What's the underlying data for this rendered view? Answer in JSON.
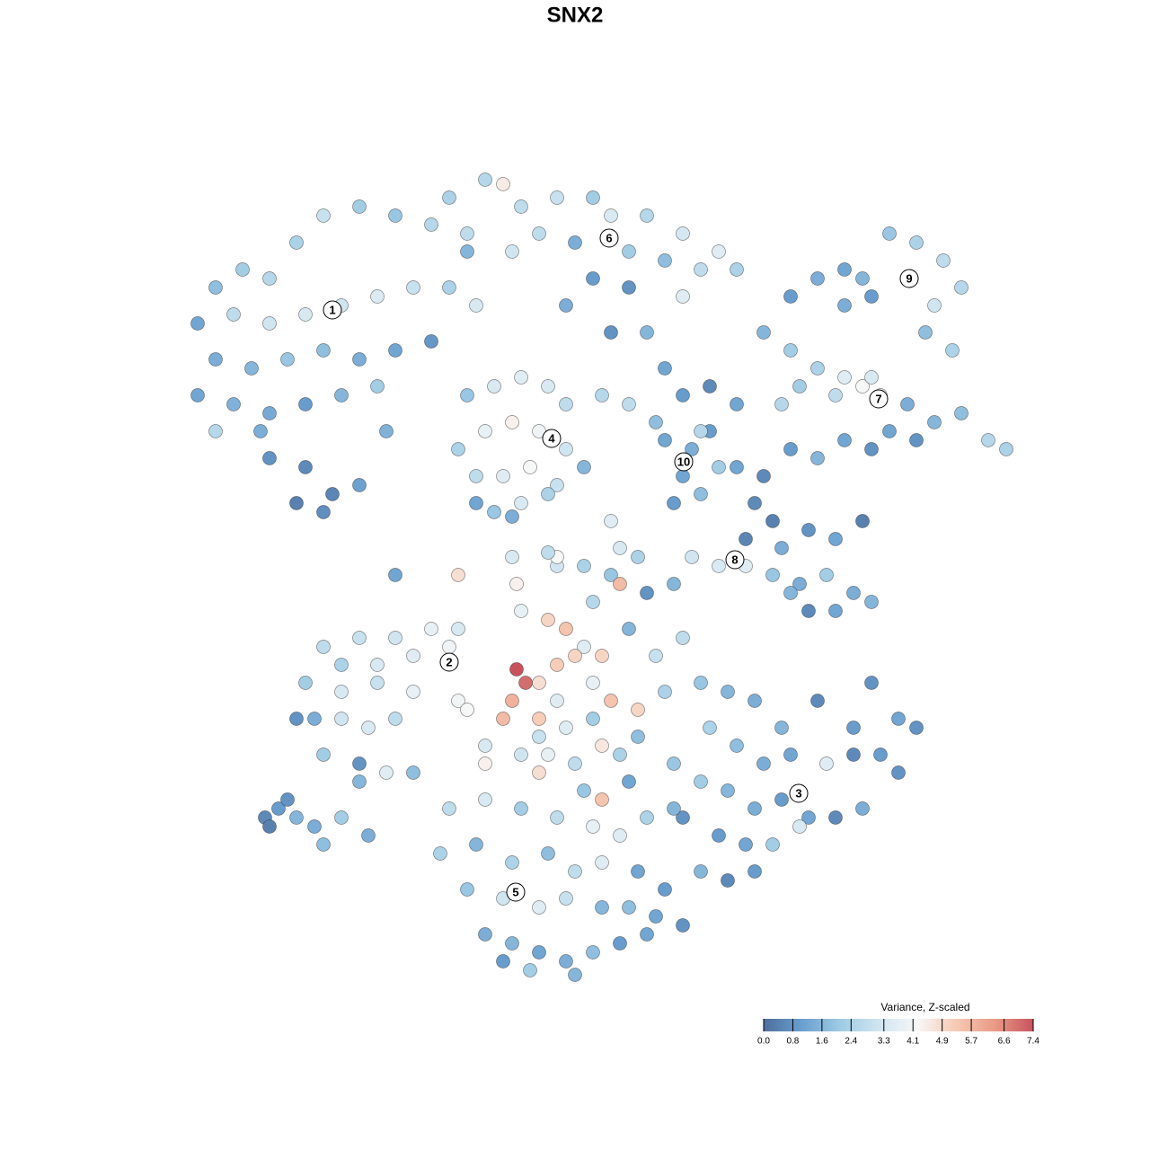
{
  "chart_data": {
    "type": "scatter",
    "title": "SNX2",
    "legend_title": "Variance, Z-scaled",
    "xlim": [
      0,
      128
    ],
    "ylim": [
      0,
      128
    ],
    "zlim": [
      0,
      7.4
    ],
    "colors": [
      "#4d6e9c",
      "#6a9fcf",
      "#9fcbe4",
      "#d0e5f1",
      "#f7f7f7",
      "#f6c9b3",
      "#e99a86",
      "#c8525e"
    ],
    "colorbar_ticks": [
      {
        "value": 0,
        "label": "0.0"
      },
      0.8,
      1.6,
      2.4,
      3.3,
      4.1,
      4.9,
      5.7,
      6.6,
      7.4
    ],
    "points": [
      [
        24,
        96,
        1.8
      ],
      [
        22,
        92,
        1.2
      ],
      [
        27,
        98,
        2.2
      ],
      [
        30,
        97,
        2.6
      ],
      [
        33,
        101,
        2.4
      ],
      [
        36,
        104,
        3.0
      ],
      [
        40,
        105,
        2.2
      ],
      [
        44,
        104,
        2.0
      ],
      [
        48,
        103,
        2.6
      ],
      [
        52,
        102,
        2.8
      ],
      [
        26,
        93,
        2.8
      ],
      [
        30,
        92,
        3.2
      ],
      [
        34,
        93,
        3.4
      ],
      [
        38,
        94,
        3.2
      ],
      [
        42,
        95,
        3.5
      ],
      [
        46,
        96,
        3.0
      ],
      [
        50,
        96,
        2.4
      ],
      [
        53,
        94,
        3.4
      ],
      [
        24,
        88,
        1.4
      ],
      [
        28,
        87,
        1.6
      ],
      [
        32,
        88,
        2.0
      ],
      [
        36,
        89,
        1.8
      ],
      [
        40,
        88,
        1.4
      ],
      [
        44,
        89,
        1.2
      ],
      [
        48,
        90,
        0.9
      ],
      [
        22,
        84,
        1.2
      ],
      [
        26,
        83,
        1.5
      ],
      [
        30,
        82,
        1.3
      ],
      [
        34,
        83,
        1.0
      ],
      [
        38,
        84,
        1.6
      ],
      [
        42,
        85,
        2.2
      ],
      [
        30,
        77,
        0.8
      ],
      [
        34,
        76,
        0.6
      ],
      [
        37,
        73,
        0.5
      ],
      [
        33,
        72,
        0.4
      ],
      [
        36,
        71,
        0.7
      ],
      [
        40,
        74,
        1.1
      ],
      [
        29,
        80,
        1.4
      ],
      [
        24,
        80,
        2.6
      ],
      [
        43,
        80,
        1.5
      ],
      [
        50,
        106,
        2.4
      ],
      [
        54,
        108,
        2.6
      ],
      [
        56,
        107.5,
        4.5
      ],
      [
        58,
        105,
        2.8
      ],
      [
        62,
        106,
        3.0
      ],
      [
        66,
        106,
        2.2
      ],
      [
        68,
        104,
        3.4
      ],
      [
        72,
        104,
        2.6
      ],
      [
        76,
        102,
        3.3
      ],
      [
        80,
        100,
        3.6
      ],
      [
        82,
        98,
        2.4
      ],
      [
        60,
        102,
        2.8
      ],
      [
        64,
        101,
        1.4
      ],
      [
        70,
        100,
        2.2
      ],
      [
        74,
        99,
        1.8
      ],
      [
        78,
        98,
        2.8
      ],
      [
        57,
        100,
        3.2
      ],
      [
        52,
        100,
        1.6
      ],
      [
        66,
        97,
        1.0
      ],
      [
        70,
        96,
        0.8
      ],
      [
        76,
        95,
        3.6
      ],
      [
        63,
        94,
        1.4
      ],
      [
        68,
        91,
        0.8
      ],
      [
        72,
        91,
        1.6
      ],
      [
        74,
        87,
        1.2
      ],
      [
        88,
        95,
        1.0
      ],
      [
        91,
        97,
        1.4
      ],
      [
        94,
        98,
        1.2
      ],
      [
        96,
        97,
        1.6
      ],
      [
        99,
        102,
        2.0
      ],
      [
        102,
        101,
        2.4
      ],
      [
        105,
        99,
        2.8
      ],
      [
        107,
        96,
        2.6
      ],
      [
        104,
        94,
        3.2
      ],
      [
        97,
        95,
        1.0
      ],
      [
        94,
        94,
        1.4
      ],
      [
        103,
        91,
        1.8
      ],
      [
        106,
        89,
        2.4
      ],
      [
        101,
        97,
        1.8
      ],
      [
        85,
        91,
        1.6
      ],
      [
        88,
        89,
        2.2
      ],
      [
        91,
        87,
        2.4
      ],
      [
        94,
        86,
        3.6
      ],
      [
        96,
        85,
        4.2
      ],
      [
        98,
        84,
        3.8
      ],
      [
        101,
        83,
        1.4
      ],
      [
        104,
        81,
        1.6
      ],
      [
        107,
        82,
        1.8
      ],
      [
        110,
        79,
        2.6
      ],
      [
        112,
        78,
        2.4
      ],
      [
        99,
        80,
        1.2
      ],
      [
        102,
        79,
        0.8
      ],
      [
        93,
        84,
        2.8
      ],
      [
        89,
        85,
        2.2
      ],
      [
        87,
        83,
        2.6
      ],
      [
        97,
        86,
        3.4
      ],
      [
        52,
        84,
        2.0
      ],
      [
        55,
        85,
        3.4
      ],
      [
        58,
        86,
        3.6
      ],
      [
        61,
        85,
        3.4
      ],
      [
        63,
        83,
        2.8
      ],
      [
        51,
        78,
        2.4
      ],
      [
        54,
        80,
        3.8
      ],
      [
        57,
        81,
        4.4
      ],
      [
        60,
        80,
        4.0
      ],
      [
        63,
        78,
        3.2
      ],
      [
        65,
        76,
        1.6
      ],
      [
        53,
        75,
        2.8
      ],
      [
        56,
        75,
        3.6
      ],
      [
        59,
        76,
        4.2
      ],
      [
        62,
        74,
        3.0
      ],
      [
        55,
        71,
        2.0
      ],
      [
        58,
        72,
        3.4
      ],
      [
        61,
        73,
        2.4
      ],
      [
        53,
        72,
        1.2
      ],
      [
        57,
        70.5,
        1.4
      ],
      [
        67,
        84,
        2.6
      ],
      [
        70,
        83,
        2.8
      ],
      [
        73,
        81,
        1.8
      ],
      [
        76,
        84,
        1.0
      ],
      [
        79,
        85,
        0.6
      ],
      [
        82,
        83,
        1.2
      ],
      [
        74,
        79,
        1.2
      ],
      [
        77,
        78,
        1.4
      ],
      [
        79,
        80,
        1.0
      ],
      [
        76,
        75,
        1.2
      ],
      [
        78,
        73,
        1.8
      ],
      [
        80,
        76,
        2.2
      ],
      [
        75,
        72,
        1.0
      ],
      [
        78,
        80,
        2.6
      ],
      [
        82,
        76,
        1.2
      ],
      [
        85,
        75,
        0.6
      ],
      [
        88,
        78,
        1.0
      ],
      [
        91,
        77,
        1.6
      ],
      [
        94,
        79,
        1.2
      ],
      [
        97,
        78,
        0.8
      ],
      [
        84,
        72,
        0.6
      ],
      [
        86,
        70,
        0.4
      ],
      [
        83,
        68,
        0.5
      ],
      [
        87,
        67,
        1.4
      ],
      [
        90,
        69,
        0.8
      ],
      [
        93,
        68,
        1.2
      ],
      [
        96,
        70,
        0.4
      ],
      [
        77,
        66,
        3.2
      ],
      [
        80,
        65,
        3.4
      ],
      [
        83,
        65,
        3.6
      ],
      [
        86,
        64,
        2.0
      ],
      [
        89,
        63,
        1.4
      ],
      [
        92,
        64,
        2.2
      ],
      [
        95,
        62,
        1.4
      ],
      [
        97,
        61,
        1.6
      ],
      [
        90,
        60,
        0.6
      ],
      [
        93,
        60,
        1.2
      ],
      [
        88,
        62,
        1.6
      ],
      [
        57,
        66,
        3.4
      ],
      [
        62,
        65,
        3.2
      ],
      [
        68,
        64,
        2.0
      ],
      [
        69,
        63,
        5.6
      ],
      [
        72,
        62,
        0.8
      ],
      [
        75,
        63,
        1.6
      ],
      [
        58,
        60,
        3.8
      ],
      [
        61,
        59,
        5.0
      ],
      [
        63,
        58,
        5.4
      ],
      [
        65,
        56,
        3.6
      ],
      [
        67,
        55,
        5.0
      ],
      [
        57.5,
        53.5,
        7.4
      ],
      [
        58.5,
        52,
        7.0
      ],
      [
        60,
        52,
        4.8
      ],
      [
        62,
        54,
        5.2
      ],
      [
        64,
        55,
        5.0
      ],
      [
        66,
        52,
        3.8
      ],
      [
        68,
        50,
        5.4
      ],
      [
        71,
        49,
        5.0
      ],
      [
        57,
        50,
        5.8
      ],
      [
        56,
        48,
        5.6
      ],
      [
        60,
        48,
        5.2
      ],
      [
        63,
        47,
        3.6
      ],
      [
        54,
        45,
        3.4
      ],
      [
        58,
        44,
        3.2
      ],
      [
        61,
        44,
        3.8
      ],
      [
        64,
        43,
        2.8
      ],
      [
        67,
        45,
        4.6
      ],
      [
        69,
        44,
        2.4
      ],
      [
        54,
        43,
        4.4
      ],
      [
        60,
        42,
        4.8
      ],
      [
        65,
        40,
        2.0
      ],
      [
        67,
        39,
        5.4
      ],
      [
        62,
        66,
        4.2
      ],
      [
        51,
        64,
        4.8
      ],
      [
        66,
        61,
        2.6
      ],
      [
        70,
        58,
        1.6
      ],
      [
        73,
        55,
        3.0
      ],
      [
        76,
        57,
        2.8
      ],
      [
        74,
        51,
        2.4
      ],
      [
        71,
        46,
        1.8
      ],
      [
        66,
        48,
        2.2
      ],
      [
        70,
        41,
        1.2
      ],
      [
        75,
        43,
        2.0
      ],
      [
        60,
        46,
        3.0
      ],
      [
        62,
        50,
        3.6
      ],
      [
        57.5,
        63,
        4.4
      ],
      [
        68,
        70,
        3.6
      ],
      [
        69,
        67,
        3.4
      ],
      [
        71,
        66,
        2.4
      ],
      [
        61,
        66.5,
        2.8
      ],
      [
        65,
        65,
        2.4
      ],
      [
        44,
        64,
        1.2
      ],
      [
        51,
        58,
        3.4
      ],
      [
        36,
        56,
        2.8
      ],
      [
        40,
        57,
        3.0
      ],
      [
        44,
        57,
        3.2
      ],
      [
        48,
        58,
        3.8
      ],
      [
        50,
        56,
        4.0
      ],
      [
        38,
        54,
        2.4
      ],
      [
        42,
        54,
        3.4
      ],
      [
        46,
        55,
        3.6
      ],
      [
        34,
        52,
        2.2
      ],
      [
        38,
        51,
        3.4
      ],
      [
        42,
        52,
        3.0
      ],
      [
        46,
        51,
        3.8
      ],
      [
        51,
        50,
        4.1
      ],
      [
        33,
        48,
        0.8
      ],
      [
        35,
        48,
        1.4
      ],
      [
        38,
        48,
        3.2
      ],
      [
        41,
        47,
        3.4
      ],
      [
        44,
        48,
        2.8
      ],
      [
        36,
        44,
        2.2
      ],
      [
        40,
        43,
        0.8
      ],
      [
        43,
        42,
        3.6
      ],
      [
        46,
        42,
        1.8
      ],
      [
        52,
        49,
        4.2
      ],
      [
        78,
        52,
        2.0
      ],
      [
        81,
        51,
        1.6
      ],
      [
        84,
        50,
        1.4
      ],
      [
        87,
        47,
        1.6
      ],
      [
        91,
        50,
        0.6
      ],
      [
        95,
        47,
        1.0
      ],
      [
        97,
        52,
        0.8
      ],
      [
        100,
        48,
        1.2
      ],
      [
        102,
        47,
        0.8
      ],
      [
        79,
        47,
        2.4
      ],
      [
        82,
        45,
        1.8
      ],
      [
        85,
        43,
        1.4
      ],
      [
        88,
        44,
        1.2
      ],
      [
        92,
        43,
        3.6
      ],
      [
        95,
        44,
        0.6
      ],
      [
        98,
        44,
        1.0
      ],
      [
        100,
        42,
        0.8
      ],
      [
        78,
        41,
        2.2
      ],
      [
        81,
        40,
        1.6
      ],
      [
        84,
        38,
        1.4
      ],
      [
        87,
        39,
        1.0
      ],
      [
        90,
        37,
        1.2
      ],
      [
        93,
        37,
        0.6
      ],
      [
        96,
        38,
        1.4
      ],
      [
        80,
        35,
        1.0
      ],
      [
        83,
        34,
        1.2
      ],
      [
        86,
        34,
        2.2
      ],
      [
        89,
        36,
        3.4
      ],
      [
        78,
        31,
        1.6
      ],
      [
        81,
        30,
        0.6
      ],
      [
        84,
        31,
        1.0
      ],
      [
        76,
        37,
        0.8
      ],
      [
        50,
        38,
        2.8
      ],
      [
        54,
        39,
        3.4
      ],
      [
        58,
        38,
        2.2
      ],
      [
        62,
        37,
        2.8
      ],
      [
        66,
        36,
        3.8
      ],
      [
        69,
        35,
        3.6
      ],
      [
        72,
        37,
        2.4
      ],
      [
        75,
        38,
        1.6
      ],
      [
        49,
        33,
        2.4
      ],
      [
        53,
        34,
        1.6
      ],
      [
        57,
        32,
        2.4
      ],
      [
        61,
        33,
        1.8
      ],
      [
        64,
        31,
        2.8
      ],
      [
        67,
        32,
        3.6
      ],
      [
        71,
        31,
        1.2
      ],
      [
        74,
        29,
        1.0
      ],
      [
        52,
        29,
        2.0
      ],
      [
        56,
        28,
        3.2
      ],
      [
        60,
        27,
        3.6
      ],
      [
        63,
        28,
        3.0
      ],
      [
        67,
        27,
        1.6
      ],
      [
        70,
        27,
        1.8
      ],
      [
        73,
        26,
        1.2
      ],
      [
        76,
        25,
        0.8
      ],
      [
        54,
        24,
        1.4
      ],
      [
        57,
        23,
        1.6
      ],
      [
        60,
        22,
        1.2
      ],
      [
        63,
        21,
        1.4
      ],
      [
        66,
        22,
        1.8
      ],
      [
        69,
        23,
        1.0
      ],
      [
        72,
        24,
        1.2
      ],
      [
        59,
        20,
        2.2
      ],
      [
        64,
        19.5,
        1.6
      ],
      [
        56,
        21,
        1.0
      ],
      [
        29.5,
        37,
        0.6
      ],
      [
        31,
        38,
        1.0
      ],
      [
        33,
        37,
        1.6
      ],
      [
        35,
        36,
        1.4
      ],
      [
        36,
        34,
        1.8
      ],
      [
        38,
        37,
        2.2
      ],
      [
        41,
        35,
        1.4
      ],
      [
        32,
        39,
        0.8
      ],
      [
        30,
        36,
        0.4
      ],
      [
        40,
        41,
        1.6
      ]
    ],
    "clusters": [
      {
        "label": "1",
        "x": 37,
        "y": 93.5
      },
      {
        "label": "2",
        "x": 50,
        "y": 54.3
      },
      {
        "label": "3",
        "x": 88.9,
        "y": 39.7
      },
      {
        "label": "4",
        "x": 61.4,
        "y": 79.2
      },
      {
        "label": "5",
        "x": 57.4,
        "y": 28.7
      },
      {
        "label": "6",
        "x": 67.8,
        "y": 101.5
      },
      {
        "label": "7",
        "x": 97.8,
        "y": 83.6
      },
      {
        "label": "8",
        "x": 81.8,
        "y": 65.7
      },
      {
        "label": "9",
        "x": 101.2,
        "y": 97
      },
      {
        "label": "10",
        "x": 76.1,
        "y": 76.6
      }
    ]
  }
}
